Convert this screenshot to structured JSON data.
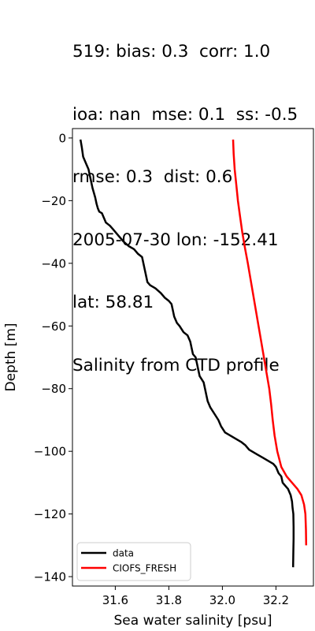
{
  "title_lines": [
    "519: bias: 0.3  corr: 1.0",
    "ioa: nan  mse: 0.1  ss: -0.5",
    "rmse: 0.3  dist: 0.6",
    "2005-07-30 lon: -152.41",
    "lat: 58.81",
    "Salinity from CTD profile"
  ],
  "chart_data": {
    "type": "line",
    "xlabel": "Sea water salinity [psu]",
    "ylabel": "Depth [m]",
    "xlim": [
      31.44,
      32.34
    ],
    "ylim": [
      -143,
      3
    ],
    "xticks": [
      31.6,
      31.8,
      32.0,
      32.2
    ],
    "xtick_labels": [
      "31.6",
      "31.8",
      "32.0",
      "32.2"
    ],
    "yticks": [
      0,
      -20,
      -40,
      -60,
      -80,
      -100,
      -120,
      -140
    ],
    "ytick_labels": [
      "0",
      "−20",
      "−40",
      "−60",
      "−80",
      "−100",
      "−120",
      "−140"
    ],
    "grid": false,
    "legend_position": "lower-left",
    "series": [
      {
        "name": "data",
        "color": "#000000",
        "points": [
          [
            31.47,
            -0.5
          ],
          [
            31.475,
            -3
          ],
          [
            31.48,
            -6
          ],
          [
            31.49,
            -8
          ],
          [
            31.5,
            -10
          ],
          [
            31.505,
            -12
          ],
          [
            31.51,
            -14
          ],
          [
            31.515,
            -16
          ],
          [
            31.52,
            -17.5
          ],
          [
            31.525,
            -19
          ],
          [
            31.53,
            -21
          ],
          [
            31.535,
            -22.5
          ],
          [
            31.54,
            -23.5
          ],
          [
            31.55,
            -24
          ],
          [
            31.555,
            -25
          ],
          [
            31.56,
            -26
          ],
          [
            31.565,
            -27
          ],
          [
            31.58,
            -28
          ],
          [
            31.59,
            -29
          ],
          [
            31.6,
            -30
          ],
          [
            31.61,
            -31
          ],
          [
            31.63,
            -33
          ],
          [
            31.65,
            -34.5
          ],
          [
            31.67,
            -35.5
          ],
          [
            31.685,
            -37
          ],
          [
            31.7,
            -38
          ],
          [
            31.705,
            -40
          ],
          [
            31.71,
            -42
          ],
          [
            31.715,
            -44
          ],
          [
            31.72,
            -46
          ],
          [
            31.73,
            -47
          ],
          [
            31.75,
            -48
          ],
          [
            31.77,
            -49.5
          ],
          [
            31.785,
            -51
          ],
          [
            31.8,
            -52
          ],
          [
            31.81,
            -53
          ],
          [
            31.815,
            -55
          ],
          [
            31.82,
            -57
          ],
          [
            31.83,
            -59
          ],
          [
            31.84,
            -60
          ],
          [
            31.855,
            -62
          ],
          [
            31.87,
            -63
          ],
          [
            31.88,
            -65
          ],
          [
            31.885,
            -67
          ],
          [
            31.89,
            -69
          ],
          [
            31.9,
            -70
          ],
          [
            31.905,
            -72
          ],
          [
            31.91,
            -74
          ],
          [
            31.915,
            -76
          ],
          [
            31.93,
            -78
          ],
          [
            31.935,
            -80
          ],
          [
            31.94,
            -82
          ],
          [
            31.945,
            -84
          ],
          [
            31.955,
            -86
          ],
          [
            31.97,
            -88
          ],
          [
            31.985,
            -90
          ],
          [
            31.995,
            -92
          ],
          [
            32.01,
            -94
          ],
          [
            32.03,
            -95
          ],
          [
            32.05,
            -96
          ],
          [
            32.07,
            -97
          ],
          [
            32.085,
            -98
          ],
          [
            32.1,
            -99.5
          ],
          [
            32.13,
            -101
          ],
          [
            32.15,
            -102
          ],
          [
            32.17,
            -103
          ],
          [
            32.19,
            -104
          ],
          [
            32.2,
            -105
          ],
          [
            32.21,
            -107
          ],
          [
            32.22,
            -108
          ],
          [
            32.225,
            -110
          ],
          [
            32.235,
            -111
          ],
          [
            32.245,
            -112
          ],
          [
            32.255,
            -114
          ],
          [
            32.26,
            -116
          ],
          [
            32.262,
            -118
          ],
          [
            32.265,
            -120
          ],
          [
            32.266,
            -124
          ],
          [
            32.266,
            -128
          ],
          [
            32.265,
            -132
          ],
          [
            32.264,
            -137
          ]
        ]
      },
      {
        "name": "CIOFS_FRESH",
        "color": "#ff0000",
        "points": [
          [
            32.04,
            -0.5
          ],
          [
            32.042,
            -5
          ],
          [
            32.046,
            -10
          ],
          [
            32.052,
            -15
          ],
          [
            32.058,
            -20
          ],
          [
            32.066,
            -25
          ],
          [
            32.074,
            -30
          ],
          [
            32.084,
            -35
          ],
          [
            32.095,
            -40
          ],
          [
            32.105,
            -45
          ],
          [
            32.115,
            -50
          ],
          [
            32.125,
            -55
          ],
          [
            32.135,
            -60
          ],
          [
            32.145,
            -65
          ],
          [
            32.155,
            -70
          ],
          [
            32.165,
            -75
          ],
          [
            32.175,
            -80
          ],
          [
            32.182,
            -85
          ],
          [
            32.188,
            -90
          ],
          [
            32.195,
            -95
          ],
          [
            32.205,
            -100
          ],
          [
            32.22,
            -105
          ],
          [
            32.24,
            -108
          ],
          [
            32.26,
            -110
          ],
          [
            32.28,
            -112
          ],
          [
            32.295,
            -114
          ],
          [
            32.305,
            -117
          ],
          [
            32.31,
            -120
          ],
          [
            32.312,
            -125
          ],
          [
            32.313,
            -130
          ]
        ]
      }
    ]
  }
}
